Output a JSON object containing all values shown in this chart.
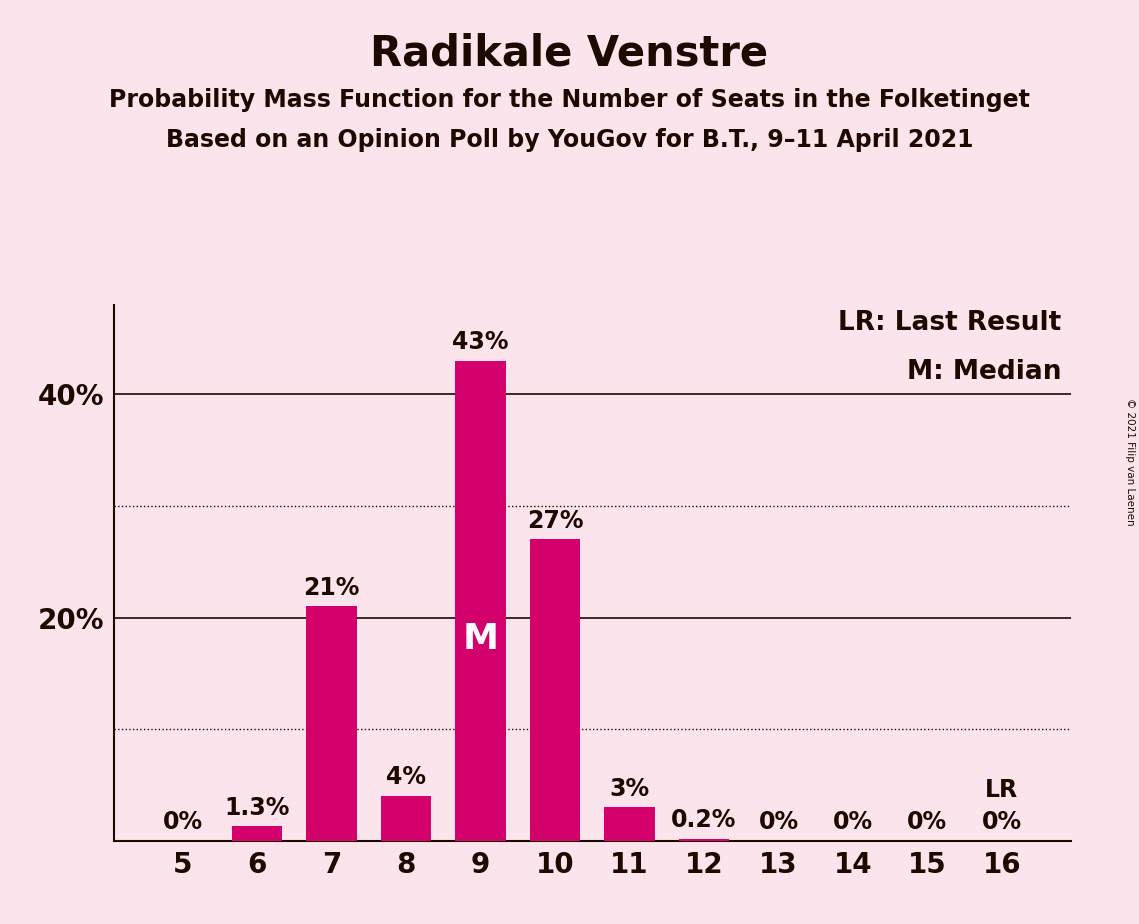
{
  "title": "Radikale Venstre",
  "subtitle1": "Probability Mass Function for the Number of Seats in the Folketinget",
  "subtitle2": "Based on an Opinion Poll by YouGov for B.T., 9–11 April 2021",
  "copyright": "© 2021 Filip van Laenen",
  "seats": [
    5,
    6,
    7,
    8,
    9,
    10,
    11,
    12,
    13,
    14,
    15,
    16
  ],
  "probabilities": [
    0.0,
    1.3,
    21.0,
    4.0,
    43.0,
    27.0,
    3.0,
    0.2,
    0.0,
    0.0,
    0.0,
    0.0
  ],
  "labels": [
    "0%",
    "1.3%",
    "21%",
    "4%",
    "43%",
    "27%",
    "3%",
    "0.2%",
    "0%",
    "0%",
    "0%",
    "0%"
  ],
  "bar_color": "#d4006b",
  "background_color": "#fce4ec",
  "text_color": "#1a0a00",
  "median_seat": 9,
  "last_result_seat": 16,
  "yticks": [
    20,
    40
  ],
  "ytick_labels": [
    "20%",
    "40%"
  ],
  "ylim": [
    0,
    48
  ],
  "dotted_lines": [
    10,
    30
  ],
  "solid_lines": [
    20,
    40
  ],
  "legend_lr": "LR: Last Result",
  "legend_m": "M: Median",
  "title_fontsize": 30,
  "subtitle_fontsize": 17,
  "bar_label_fontsize": 17,
  "axis_label_fontsize": 20,
  "legend_fontsize": 19,
  "median_label_fontsize": 26,
  "bar_width": 0.68
}
